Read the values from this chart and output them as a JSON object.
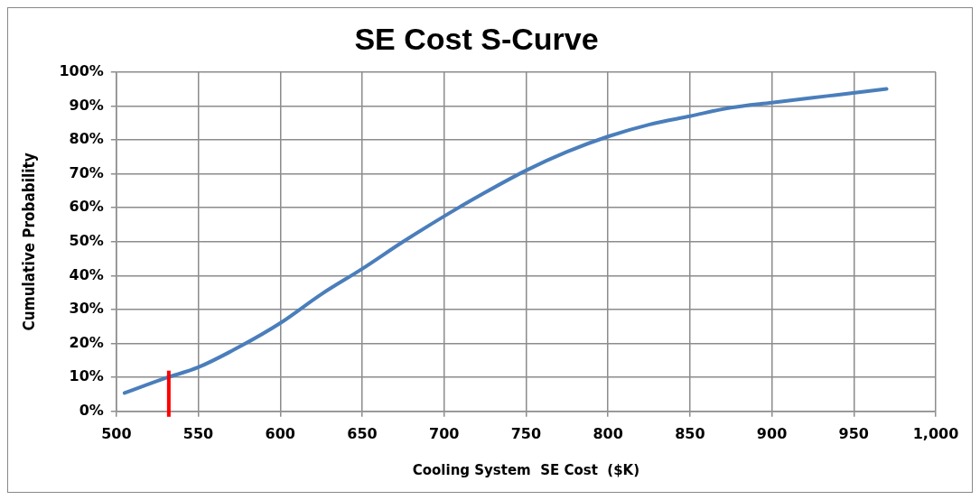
{
  "chart_data": {
    "type": "line",
    "title": "SE Cost S-Curve",
    "xlabel": "Cooling System  SE Cost  ($K)",
    "ylabel": "Cumulative Probability",
    "series": [
      {
        "color": "#4a7ebb",
        "x": [
          505,
          530,
          550,
          575,
          600,
          625,
          650,
          675,
          700,
          725,
          750,
          775,
          800,
          825,
          850,
          875,
          900,
          935,
          970
        ],
        "values": [
          5.4,
          9.8,
          13,
          19,
          26,
          34.5,
          42,
          50,
          57.5,
          64.5,
          71,
          76.5,
          81,
          84.5,
          87,
          89.5,
          91,
          93,
          95
        ]
      }
    ],
    "xlim": [
      500,
      1000
    ],
    "xticks": [
      500,
      550,
      600,
      650,
      700,
      750,
      800,
      850,
      900,
      950,
      {
        "value": 1000,
        "label": "1,000"
      }
    ],
    "ylim": [
      0,
      100
    ],
    "yticks": [
      {
        "value": 0,
        "label": "0%"
      },
      {
        "value": 10,
        "label": "10%"
      },
      {
        "value": 20,
        "label": "20%"
      },
      {
        "value": 30,
        "label": "30%"
      },
      {
        "value": 40,
        "label": "40%"
      },
      {
        "value": 50,
        "label": "50%"
      },
      {
        "value": 60,
        "label": "60%"
      },
      {
        "value": 70,
        "label": "70%"
      },
      {
        "value": 80,
        "label": "80%"
      },
      {
        "value": 90,
        "label": "90%"
      },
      {
        "value": 100,
        "label": "100%"
      }
    ],
    "ref_lines": [
      {
        "axis": "x",
        "value": 532,
        "color": "#ff0000"
      }
    ],
    "grid": true,
    "legend": false,
    "marker": "none",
    "line_style": "solid"
  }
}
